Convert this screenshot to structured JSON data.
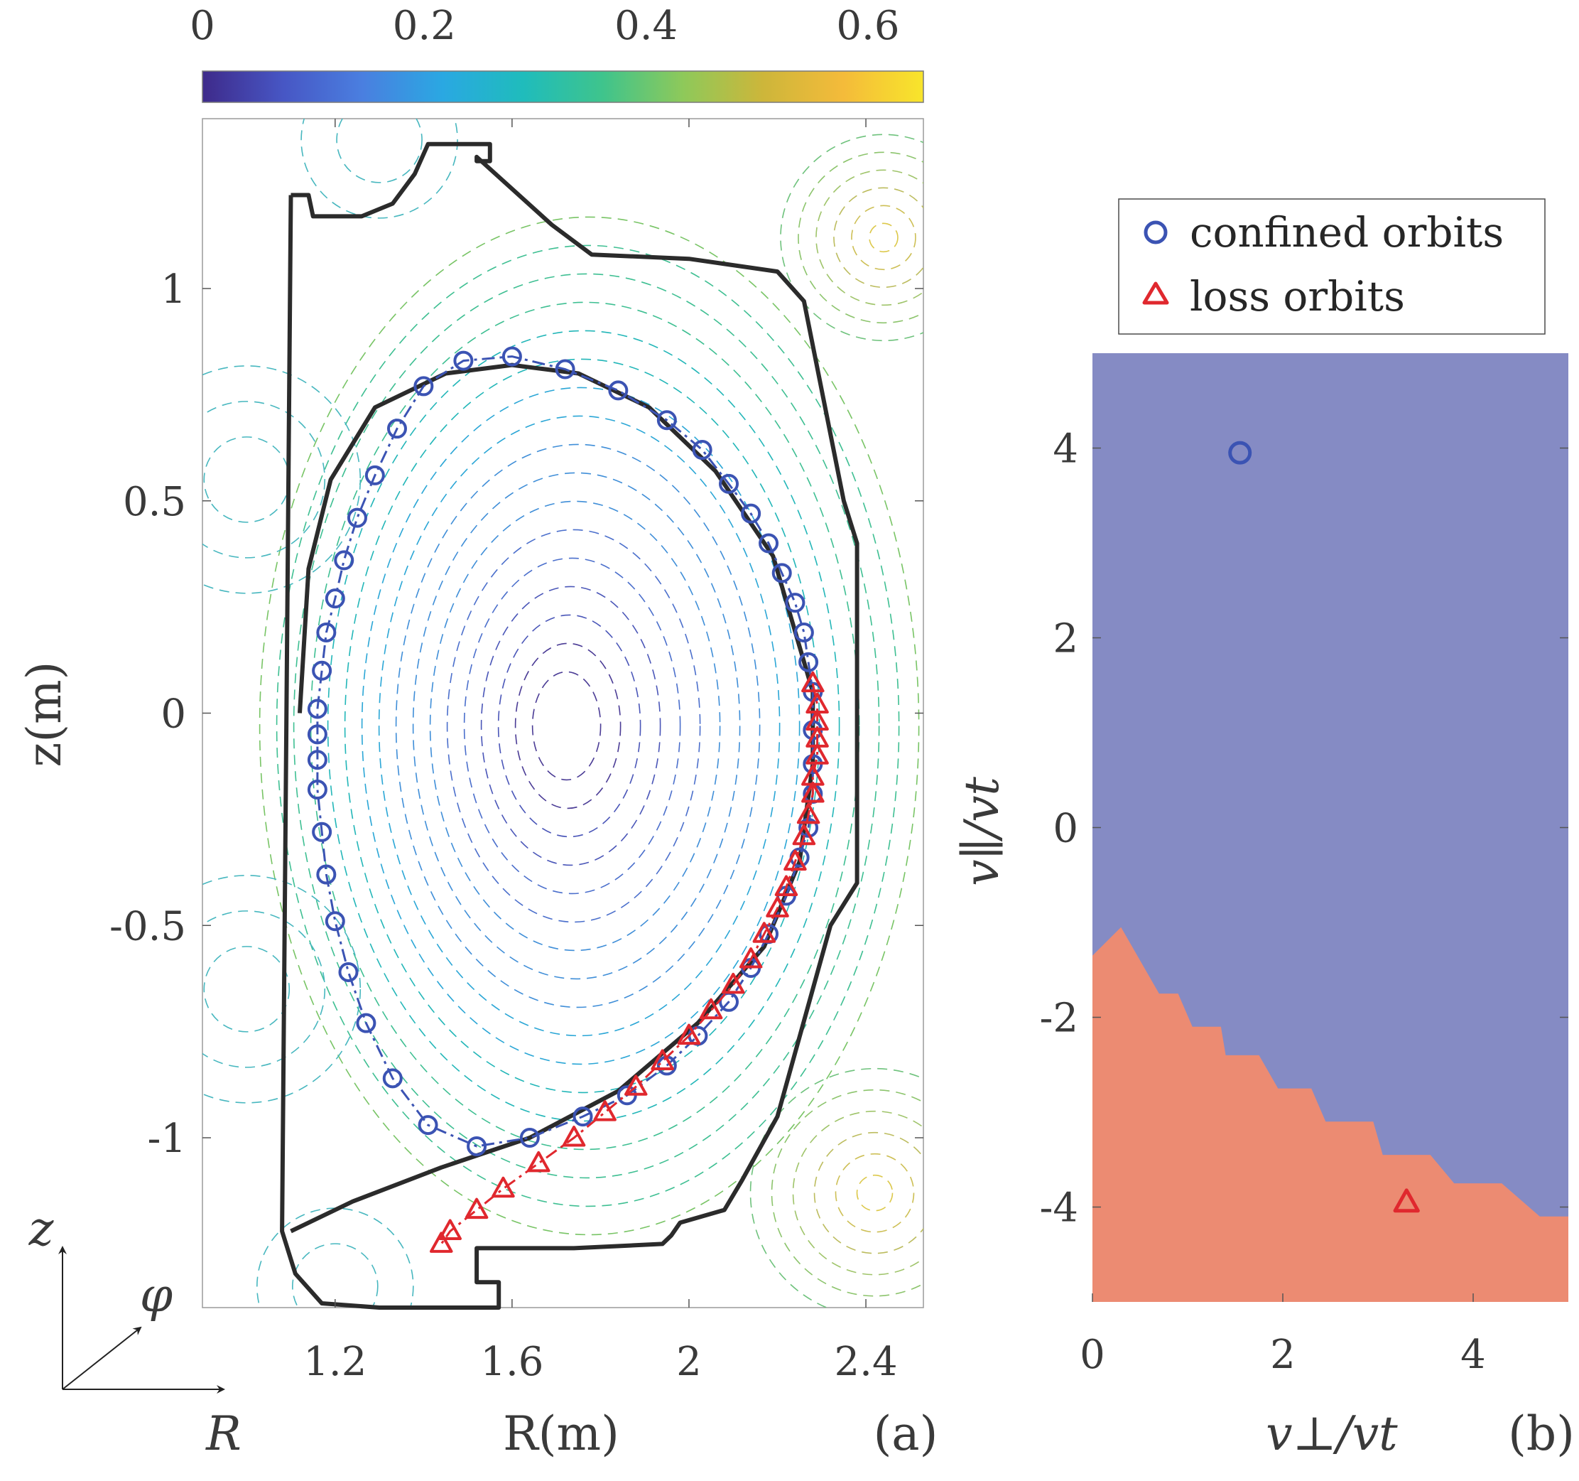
{
  "colorbar": {
    "ticks": [
      "0",
      "0.2",
      "0.4",
      "0.6"
    ],
    "range": [
      0,
      0.65
    ],
    "colormap": [
      "#3e2a8a",
      "#4756c4",
      "#4a7fe0",
      "#2aa8e2",
      "#1fbcbc",
      "#3fc48c",
      "#8ec95a",
      "#cdb63a",
      "#f4bb3a",
      "#f8e52b"
    ]
  },
  "panel_a": {
    "tag": "(a)",
    "xlabel": "R(m)",
    "ylabel": "z(m)",
    "xticks": [
      "1.2",
      "1.6",
      "2",
      "2.4"
    ],
    "yticks": [
      "1",
      "0.5",
      "0",
      "-0.5",
      "-1"
    ],
    "axes_indicator": {
      "z": "z",
      "phi": "φ",
      "r": "R"
    }
  },
  "panel_b": {
    "tag": "(b)",
    "xlabel": "v⊥/vt",
    "ylabel": "v∥/vt",
    "xticks": [
      "0",
      "2",
      "4"
    ],
    "yticks": [
      "4",
      "2",
      "0",
      "-2",
      "-4"
    ],
    "legend": {
      "confined": "confined orbits",
      "loss": "loss orbits"
    }
  },
  "chart_data": [
    {
      "type": "scatter",
      "panel": "a",
      "xlabel": "R(m)",
      "ylabel": "z(m)",
      "xlim": [
        0.9,
        2.53
      ],
      "ylim": [
        -1.4,
        1.4
      ],
      "wall": [
        [
          1.1,
          1.22
        ],
        [
          1.14,
          1.22
        ],
        [
          1.15,
          1.17
        ],
        [
          1.2,
          1.17
        ],
        [
          1.26,
          1.17
        ],
        [
          1.33,
          1.2
        ],
        [
          1.38,
          1.27
        ],
        [
          1.41,
          1.34
        ],
        [
          1.55,
          1.34
        ],
        [
          1.55,
          1.3
        ],
        [
          1.52,
          1.3
        ],
        [
          1.52,
          1.31
        ],
        [
          1.69,
          1.15
        ],
        [
          1.78,
          1.08
        ],
        [
          2.0,
          1.07
        ],
        [
          2.2,
          1.04
        ],
        [
          2.26,
          0.97
        ],
        [
          2.35,
          0.5
        ],
        [
          2.38,
          0.4
        ],
        [
          2.38,
          -0.4
        ],
        [
          2.32,
          -0.5
        ],
        [
          2.2,
          -0.95
        ],
        [
          2.12,
          -1.1
        ],
        [
          2.08,
          -1.17
        ],
        [
          1.98,
          -1.2
        ],
        [
          1.96,
          -1.23
        ],
        [
          1.94,
          -1.25
        ],
        [
          1.74,
          -1.26
        ],
        [
          1.52,
          -1.26
        ],
        [
          1.52,
          -1.34
        ],
        [
          1.57,
          -1.34
        ],
        [
          1.57,
          -1.4
        ],
        [
          1.39,
          -1.4
        ],
        [
          1.3,
          -1.4
        ],
        [
          1.17,
          -1.39
        ],
        [
          1.11,
          -1.32
        ],
        [
          1.08,
          -1.22
        ],
        [
          1.1,
          1.22
        ]
      ],
      "separatrix": [
        [
          1.12,
          0.0
        ],
        [
          1.14,
          0.34
        ],
        [
          1.19,
          0.55
        ],
        [
          1.29,
          0.72
        ],
        [
          1.45,
          0.8
        ],
        [
          1.6,
          0.82
        ],
        [
          1.75,
          0.8
        ],
        [
          1.91,
          0.72
        ],
        [
          2.06,
          0.57
        ],
        [
          2.19,
          0.37
        ],
        [
          2.28,
          0.05
        ],
        [
          2.28,
          -0.12
        ],
        [
          2.25,
          -0.35
        ],
        [
          2.17,
          -0.55
        ],
        [
          2.02,
          -0.73
        ],
        [
          1.84,
          -0.89
        ],
        [
          1.64,
          -1.0
        ],
        [
          1.44,
          -1.07
        ],
        [
          1.24,
          -1.15
        ],
        [
          1.1,
          -1.22
        ]
      ],
      "series": [
        {
          "name": "confined orbits",
          "color": "#3b53b3",
          "marker": "circle",
          "points": [
            [
              1.16,
              -0.05
            ],
            [
              1.16,
              0.01
            ],
            [
              1.17,
              0.1
            ],
            [
              1.18,
              0.19
            ],
            [
              1.2,
              0.27
            ],
            [
              1.22,
              0.36
            ],
            [
              1.25,
              0.46
            ],
            [
              1.29,
              0.56
            ],
            [
              1.34,
              0.67
            ],
            [
              1.4,
              0.77
            ],
            [
              1.49,
              0.83
            ],
            [
              1.6,
              0.84
            ],
            [
              1.72,
              0.81
            ],
            [
              1.84,
              0.76
            ],
            [
              1.95,
              0.69
            ],
            [
              2.03,
              0.62
            ],
            [
              2.09,
              0.54
            ],
            [
              2.14,
              0.47
            ],
            [
              2.18,
              0.4
            ],
            [
              2.21,
              0.33
            ],
            [
              2.24,
              0.26
            ],
            [
              2.26,
              0.19
            ],
            [
              2.27,
              0.12
            ],
            [
              2.28,
              0.05
            ],
            [
              2.28,
              -0.04
            ],
            [
              2.28,
              -0.12
            ],
            [
              2.28,
              -0.19
            ],
            [
              2.27,
              -0.27
            ],
            [
              2.25,
              -0.34
            ],
            [
              2.22,
              -0.43
            ],
            [
              2.18,
              -0.52
            ],
            [
              2.14,
              -0.6
            ],
            [
              2.09,
              -0.68
            ],
            [
              2.02,
              -0.76
            ],
            [
              1.95,
              -0.83
            ],
            [
              1.86,
              -0.9
            ],
            [
              1.76,
              -0.95
            ],
            [
              1.64,
              -1.0
            ],
            [
              1.52,
              -1.02
            ],
            [
              1.41,
              -0.97
            ],
            [
              1.33,
              -0.86
            ],
            [
              1.27,
              -0.73
            ],
            [
              1.23,
              -0.61
            ],
            [
              1.2,
              -0.49
            ],
            [
              1.18,
              -0.38
            ],
            [
              1.17,
              -0.28
            ],
            [
              1.16,
              -0.18
            ],
            [
              1.16,
              -0.11
            ]
          ]
        },
        {
          "name": "loss orbits",
          "color": "#e0282e",
          "marker": "triangle",
          "points": [
            [
              2.28,
              0.07
            ],
            [
              2.29,
              0.02
            ],
            [
              2.29,
              -0.02
            ],
            [
              2.29,
              -0.06
            ],
            [
              2.29,
              -0.1
            ],
            [
              2.28,
              -0.15
            ],
            [
              2.28,
              -0.19
            ],
            [
              2.27,
              -0.24
            ],
            [
              2.26,
              -0.29
            ],
            [
              2.24,
              -0.35
            ],
            [
              2.22,
              -0.41
            ],
            [
              2.2,
              -0.46
            ],
            [
              2.17,
              -0.52
            ],
            [
              2.14,
              -0.58
            ],
            [
              2.1,
              -0.64
            ],
            [
              2.05,
              -0.7
            ],
            [
              2.0,
              -0.76
            ],
            [
              1.94,
              -0.82
            ],
            [
              1.88,
              -0.88
            ],
            [
              1.81,
              -0.94
            ],
            [
              1.74,
              -1.0
            ],
            [
              1.66,
              -1.06
            ],
            [
              1.58,
              -1.12
            ],
            [
              1.52,
              -1.17
            ],
            [
              1.46,
              -1.22
            ],
            [
              1.44,
              -1.25
            ]
          ]
        }
      ]
    },
    {
      "type": "area",
      "panel": "b",
      "xlabel": "v⊥/vt",
      "ylabel": "v∥/vt",
      "xlim": [
        0,
        5
      ],
      "ylim": [
        -5,
        5
      ],
      "regions": [
        {
          "name": "confined orbits",
          "color": "#858bc4"
        },
        {
          "name": "loss orbits",
          "color": "#ec8b72"
        }
      ],
      "boundary": [
        [
          0,
          -1.35
        ],
        [
          0.3,
          -1.05
        ],
        [
          0.7,
          -1.75
        ],
        [
          0.9,
          -1.75
        ],
        [
          1.05,
          -2.1
        ],
        [
          1.35,
          -2.1
        ],
        [
          1.4,
          -2.4
        ],
        [
          1.75,
          -2.4
        ],
        [
          1.95,
          -2.75
        ],
        [
          2.3,
          -2.75
        ],
        [
          2.45,
          -3.1
        ],
        [
          2.95,
          -3.1
        ],
        [
          3.05,
          -3.45
        ],
        [
          3.55,
          -3.45
        ],
        [
          3.8,
          -3.75
        ],
        [
          4.3,
          -3.75
        ],
        [
          4.7,
          -4.1
        ],
        [
          5,
          -4.1
        ]
      ],
      "points": [
        {
          "name": "confined orbits",
          "x": 1.55,
          "y": 3.95,
          "marker": "circle",
          "color": "#3b53b3"
        },
        {
          "name": "loss orbits",
          "x": 3.3,
          "y": -3.95,
          "marker": "triangle",
          "color": "#e0282e"
        }
      ]
    }
  ]
}
